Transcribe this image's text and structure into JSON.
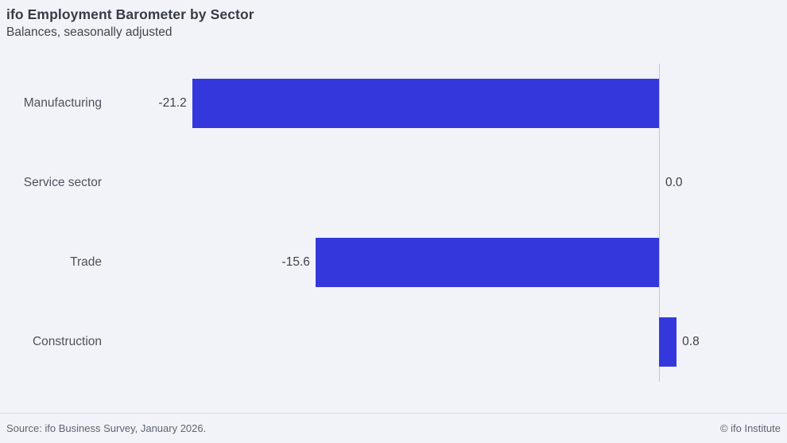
{
  "header": {
    "title": "ifo Employment Barometer by Sector",
    "subtitle": "Balances, seasonally adjusted"
  },
  "footer": {
    "source": "Source: ifo Business Survey, January 2026.",
    "copyright": "© ifo Institute"
  },
  "colors": {
    "background": "#f2f3f8",
    "bar": "#3438dc",
    "zero_axis": "#c4c7ce",
    "divider": "#d9dbe2"
  },
  "chart_data": {
    "type": "bar",
    "orientation": "horizontal",
    "title": "ifo Employment Barometer by Sector",
    "subtitle": "Balances, seasonally adjusted",
    "categories": [
      "Manufacturing",
      "Service sector",
      "Trade",
      "Construction"
    ],
    "values": [
      -21.2,
      0.0,
      -15.6,
      0.8
    ],
    "value_labels": [
      "-21.2",
      "0.0",
      "-15.6",
      "0.8"
    ],
    "series": [
      {
        "name": "Balance, seasonally adjusted",
        "values": [
          -21.2,
          0.0,
          -15.6,
          0.8
        ]
      }
    ],
    "xlabel": "",
    "ylabel": "",
    "xlim": [
      -22.5,
      5.0
    ],
    "grid": false,
    "legend": false,
    "zero_line": true,
    "data_labels": "outside-bar-end"
  }
}
